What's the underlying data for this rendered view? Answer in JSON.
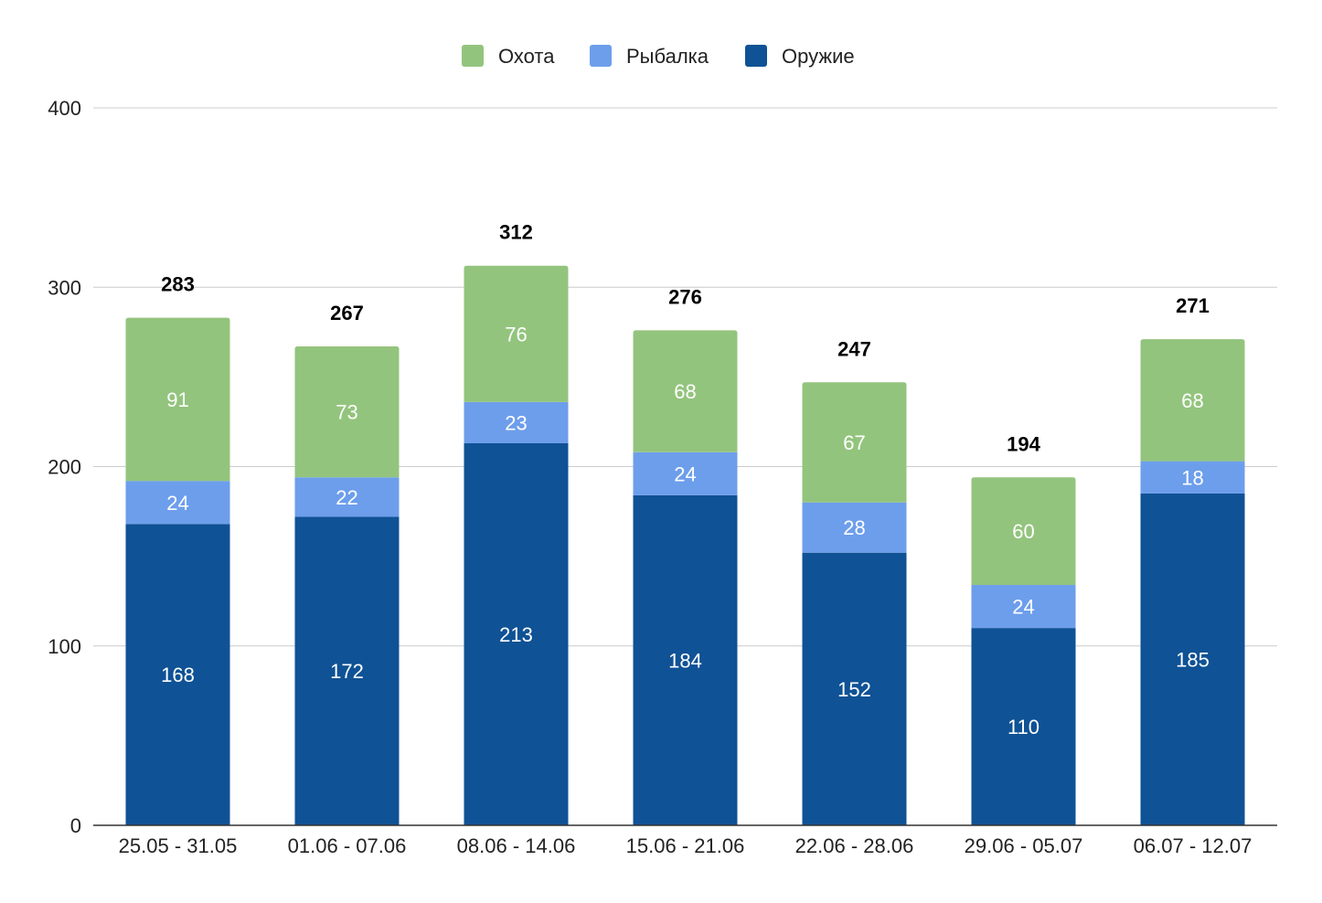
{
  "colors": {
    "Охота": "#93c47d",
    "Рыбалка": "#6d9eeb",
    "Оружие": "#0f5295",
    "grid": "#cccccc",
    "axis": "#333333"
  },
  "chart_data": {
    "type": "bar",
    "stacked": true,
    "title": "",
    "xlabel": "",
    "ylabel": "",
    "ylim": [
      0,
      400
    ],
    "yticks": [
      0,
      100,
      200,
      300,
      400
    ],
    "grid": true,
    "legend_position": "top",
    "legend_order": [
      "Охота",
      "Рыбалка",
      "Оружие"
    ],
    "categories": [
      "25.05 - 31.05",
      "01.06 - 07.06",
      "08.06 - 14.06",
      "15.06 - 21.06",
      "22.06 - 28.06",
      "29.06 - 05.07",
      "06.07 - 12.07"
    ],
    "series": [
      {
        "name": "Оружие",
        "values": [
          168,
          172,
          213,
          184,
          152,
          110,
          185
        ]
      },
      {
        "name": "Рыбалка",
        "values": [
          24,
          22,
          23,
          24,
          28,
          24,
          18
        ]
      },
      {
        "name": "Охота",
        "values": [
          91,
          73,
          76,
          68,
          67,
          60,
          68
        ]
      }
    ],
    "totals": [
      283,
      267,
      312,
      276,
      247,
      194,
      271
    ]
  }
}
